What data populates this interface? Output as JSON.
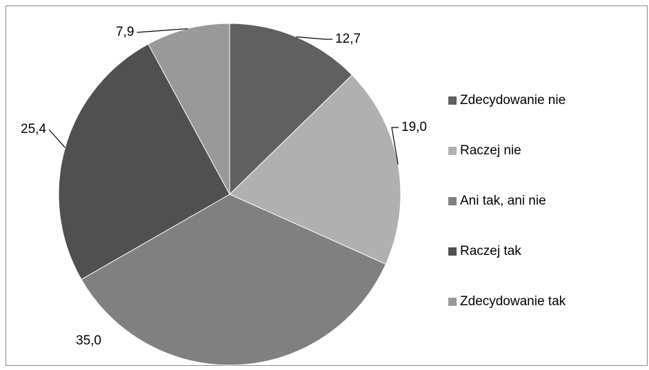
{
  "chart_data": {
    "type": "pie",
    "categories": [
      "Zdecydowanie nie",
      "Raczej nie",
      "Ani tak, ani nie",
      "Raczej tak",
      "Zdecydowanie tak"
    ],
    "values": [
      12.7,
      19.0,
      35.0,
      25.4,
      7.9
    ],
    "value_labels": [
      "12,7",
      "19,0",
      "35,0",
      "25,4",
      "7,9"
    ],
    "colors": [
      "#606060",
      "#b0b0b0",
      "#808080",
      "#505050",
      "#999999"
    ],
    "legend": "right"
  }
}
